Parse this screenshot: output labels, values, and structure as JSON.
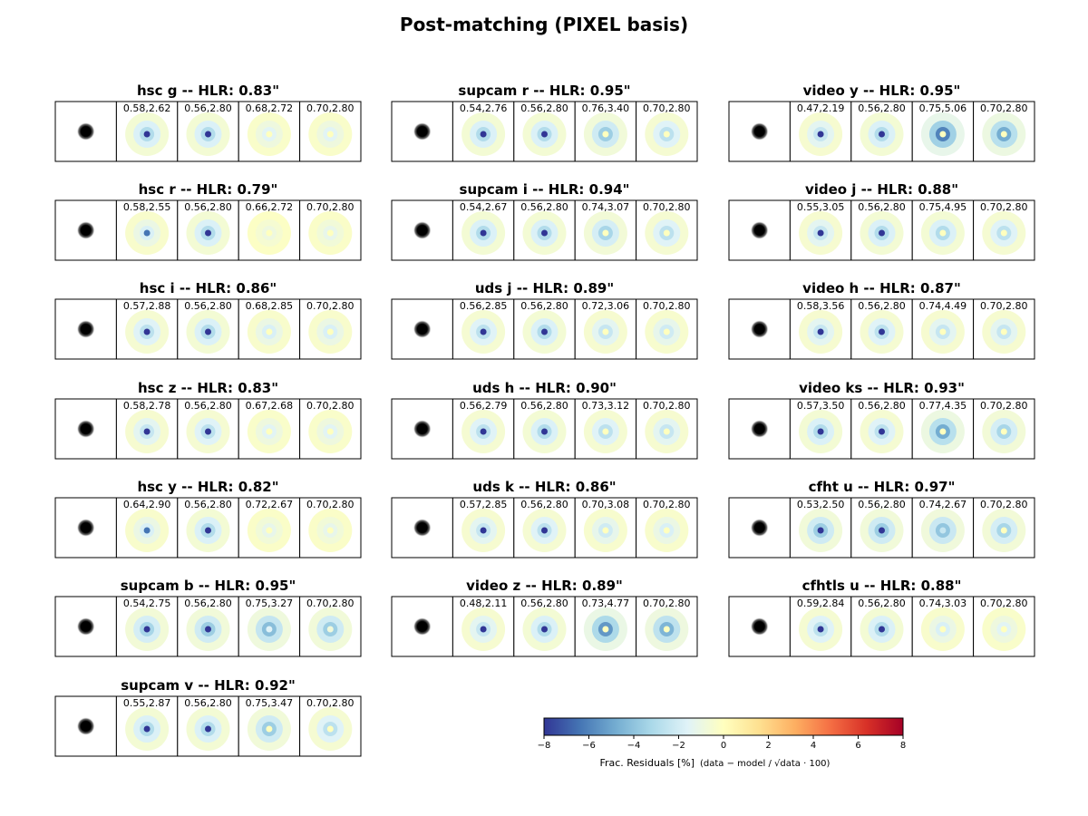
{
  "title": "Post-matching (PIXEL basis)",
  "chart_data": {
    "type": "heatmap",
    "panels": [
      {
        "title": "hsc g -- HLR: 0.83\"",
        "labels": [
          "0.58,2.62",
          "0.56,2.80",
          "0.68,2.72",
          "0.70,2.80"
        ],
        "residual_level": [
          -0.5,
          -0.5,
          -0.25,
          -0.25
        ],
        "center_level": [
          -1.0,
          -1.0,
          0.0,
          0.0
        ]
      },
      {
        "title": "supcam r -- HLR: 0.95\"",
        "labels": [
          "0.54,2.76",
          "0.56,2.80",
          "0.76,3.40",
          "0.70,2.80"
        ],
        "residual_level": [
          -0.5,
          -0.5,
          -0.6,
          -0.45
        ],
        "center_level": [
          -1.0,
          -1.0,
          0.0,
          0.0
        ]
      },
      {
        "title": "video y -- HLR: 0.95\"",
        "labels": [
          "0.47,2.19",
          "0.56,2.80",
          "0.75,5.06",
          "0.70,2.80"
        ],
        "residual_level": [
          -0.4,
          -0.5,
          -1.0,
          -0.8
        ],
        "center_level": [
          -1.0,
          -1.0,
          0.0,
          0.0
        ]
      },
      {
        "title": "hsc r -- HLR: 0.79\"",
        "labels": [
          "0.58,2.55",
          "0.56,2.80",
          "0.66,2.72",
          "0.70,2.80"
        ],
        "residual_level": [
          -0.3,
          -0.5,
          -0.15,
          -0.2
        ],
        "center_level": [
          -0.8,
          -1.0,
          0.0,
          0.0
        ]
      },
      {
        "title": "supcam i -- HLR: 0.94\"",
        "labels": [
          "0.54,2.67",
          "0.56,2.80",
          "0.74,3.07",
          "0.70,2.80"
        ],
        "residual_level": [
          -0.5,
          -0.5,
          -0.55,
          -0.45
        ],
        "center_level": [
          -1.0,
          -1.0,
          0.0,
          0.0
        ]
      },
      {
        "title": "video j -- HLR: 0.88\"",
        "labels": [
          "0.55,3.05",
          "0.56,2.80",
          "0.75,4.95",
          "0.70,2.80"
        ],
        "residual_level": [
          -0.4,
          -0.5,
          -0.5,
          -0.45
        ],
        "center_level": [
          -1.0,
          -1.0,
          0.0,
          0.0
        ]
      },
      {
        "title": "hsc i -- HLR: 0.86\"",
        "labels": [
          "0.57,2.88",
          "0.56,2.80",
          "0.68,2.85",
          "0.70,2.80"
        ],
        "residual_level": [
          -0.45,
          -0.5,
          -0.3,
          -0.3
        ],
        "center_level": [
          -1.0,
          -1.0,
          0.0,
          0.0
        ]
      },
      {
        "title": "uds j -- HLR: 0.89\"",
        "labels": [
          "0.56,2.85",
          "0.56,2.80",
          "0.72,3.06",
          "0.70,2.80"
        ],
        "residual_level": [
          -0.45,
          -0.5,
          -0.4,
          -0.35
        ],
        "center_level": [
          -1.0,
          -1.0,
          0.0,
          0.0
        ]
      },
      {
        "title": "video h -- HLR: 0.87\"",
        "labels": [
          "0.58,3.56",
          "0.56,2.80",
          "0.74,4.49",
          "0.70,2.80"
        ],
        "residual_level": [
          -0.4,
          -0.45,
          -0.4,
          -0.4
        ],
        "center_level": [
          -1.0,
          -1.0,
          0.0,
          0.0
        ]
      },
      {
        "title": "hsc z -- HLR: 0.83\"",
        "labels": [
          "0.58,2.78",
          "0.56,2.80",
          "0.67,2.68",
          "0.70,2.80"
        ],
        "residual_level": [
          -0.4,
          -0.45,
          -0.25,
          -0.25
        ],
        "center_level": [
          -1.0,
          -1.0,
          0.0,
          0.0
        ]
      },
      {
        "title": "uds h -- HLR: 0.90\"",
        "labels": [
          "0.56,2.79",
          "0.56,2.80",
          "0.73,3.12",
          "0.70,2.80"
        ],
        "residual_level": [
          -0.45,
          -0.5,
          -0.45,
          -0.4
        ],
        "center_level": [
          -1.0,
          -1.0,
          0.0,
          0.0
        ]
      },
      {
        "title": "video ks -- HLR: 0.93\"",
        "labels": [
          "0.57,3.50",
          "0.56,2.80",
          "0.77,4.35",
          "0.70,2.80"
        ],
        "residual_level": [
          -0.5,
          -0.45,
          -0.8,
          -0.55
        ],
        "center_level": [
          -1.0,
          -1.0,
          0.0,
          0.0
        ]
      },
      {
        "title": "hsc y -- HLR: 0.82\"",
        "labels": [
          "0.64,2.90",
          "0.56,2.80",
          "0.72,2.67",
          "0.70,2.80"
        ],
        "residual_level": [
          -0.3,
          -0.5,
          -0.2,
          -0.2
        ],
        "center_level": [
          -0.8,
          -1.0,
          0.0,
          0.0
        ]
      },
      {
        "title": "uds k -- HLR: 0.86\"",
        "labels": [
          "0.57,2.85",
          "0.56,2.80",
          "0.70,3.08",
          "0.70,2.80"
        ],
        "residual_level": [
          -0.4,
          -0.45,
          -0.35,
          -0.3
        ],
        "center_level": [
          -1.0,
          -1.0,
          0.0,
          0.0
        ]
      },
      {
        "title": "cfht u -- HLR: 0.97\"",
        "labels": [
          "0.53,2.50",
          "0.56,2.80",
          "0.74,2.67",
          "0.70,2.80"
        ],
        "residual_level": [
          -0.6,
          -0.6,
          -0.65,
          -0.55
        ],
        "center_level": [
          -1.0,
          -1.0,
          -0.3,
          0.0
        ]
      },
      {
        "title": "supcam b -- HLR: 0.95\"",
        "labels": [
          "0.54,2.75",
          "0.56,2.80",
          "0.75,3.27",
          "0.70,2.80"
        ],
        "residual_level": [
          -0.55,
          -0.6,
          -0.7,
          -0.6
        ],
        "center_level": [
          -1.0,
          -1.0,
          -0.2,
          -0.1
        ]
      },
      {
        "title": "video z -- HLR: 0.89\"",
        "labels": [
          "0.48,2.11",
          "0.56,2.80",
          "0.73,4.77",
          "0.70,2.80"
        ],
        "residual_level": [
          -0.4,
          -0.5,
          -0.9,
          -0.75
        ],
        "center_level": [
          -1.0,
          -1.0,
          0.0,
          0.0
        ]
      },
      {
        "title": "cfhtls u -- HLR: 0.88\"",
        "labels": [
          "0.59,2.84",
          "0.56,2.80",
          "0.74,3.03",
          "0.70,2.80"
        ],
        "residual_level": [
          -0.45,
          -0.5,
          -0.3,
          -0.25
        ],
        "center_level": [
          -1.0,
          -1.0,
          0.0,
          0.0
        ]
      },
      {
        "title": "supcam v -- HLR: 0.92\"",
        "labels": [
          "0.55,2.87",
          "0.56,2.80",
          "0.75,3.47",
          "0.70,2.80"
        ],
        "residual_level": [
          -0.5,
          -0.5,
          -0.6,
          -0.45
        ],
        "center_level": [
          -1.0,
          -1.0,
          0.0,
          0.0
        ]
      }
    ],
    "colorbar": {
      "label": "Frac. Residuals [%]",
      "label_formula": "(data − model / √data · 100)",
      "range": [
        -8,
        8
      ],
      "ticks": [
        -8,
        -6,
        -4,
        -2,
        0,
        2,
        4,
        6,
        8
      ],
      "colormap": "RdYlBu_r"
    },
    "grid": false
  }
}
